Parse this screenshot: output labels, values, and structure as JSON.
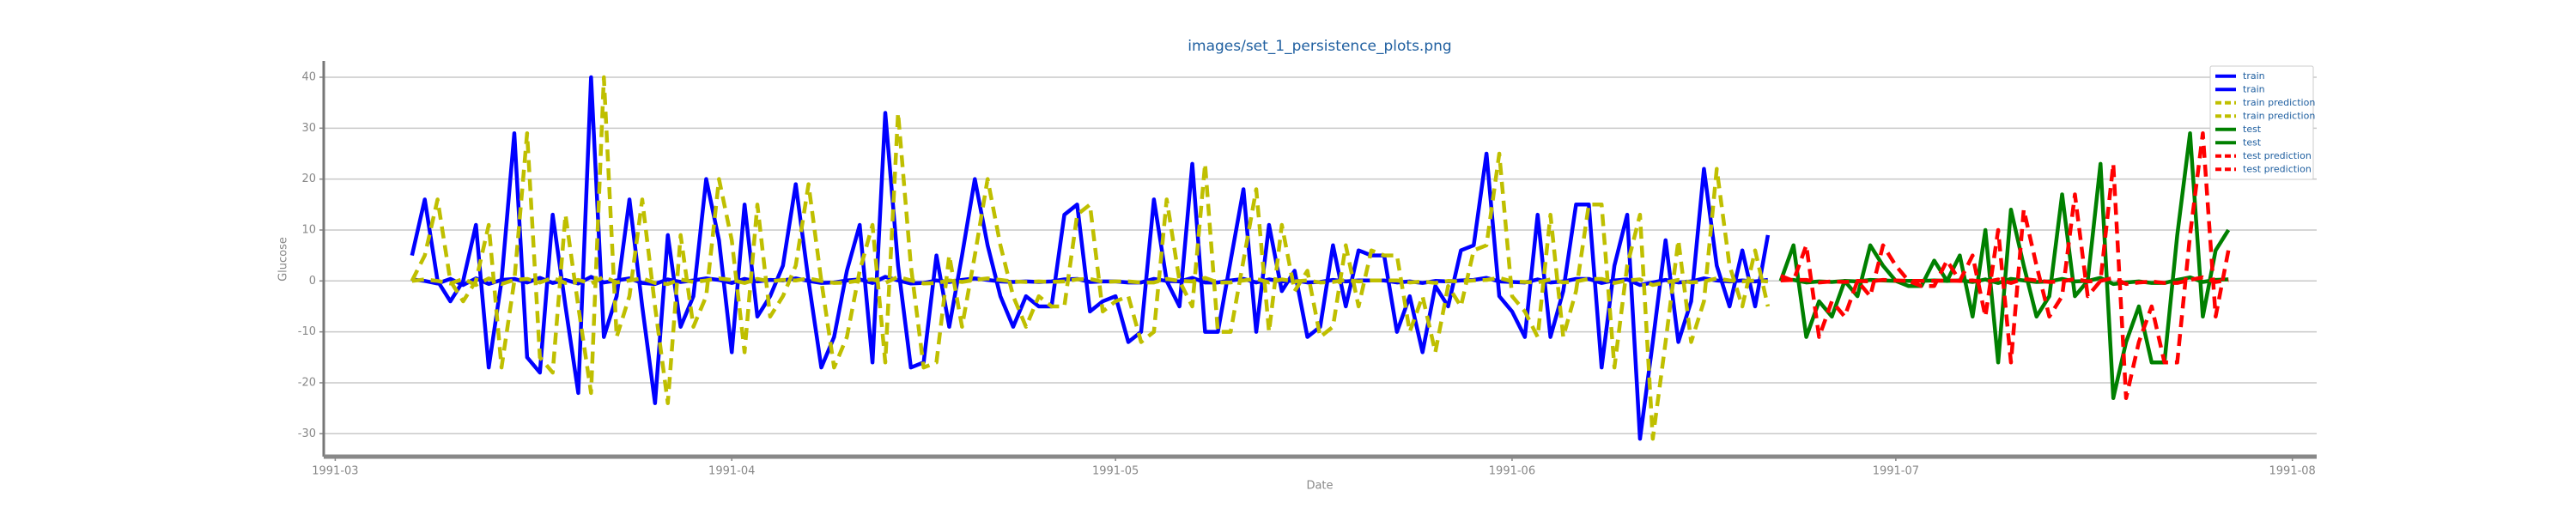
{
  "chart_data": {
    "type": "line",
    "title": "images/set_1_persistence_plots.png",
    "x_label": "Date",
    "y_label": "Glucose",
    "xlim": [
      -0.9,
      154.9
    ],
    "ylim": [
      -34.5,
      43.2
    ],
    "xticks": [
      {
        "value": 0,
        "label": "1991-03"
      },
      {
        "value": 31,
        "label": "1991-04"
      },
      {
        "value": 61,
        "label": "1991-05"
      },
      {
        "value": 92,
        "label": "1991-06"
      },
      {
        "value": 122,
        "label": "1991-07"
      },
      {
        "value": 153,
        "label": "1991-08"
      }
    ],
    "yticks": [
      -30,
      -20,
      -10,
      0,
      10,
      20,
      30,
      40
    ],
    "grid": true,
    "legend": "upper right",
    "series": [
      {
        "name": "train",
        "color": "#0000ff",
        "dashed": false,
        "x": [
          6,
          7,
          8,
          9,
          10,
          11,
          12,
          13,
          14,
          15,
          16,
          17,
          18,
          19,
          20,
          21,
          22,
          23,
          24,
          25,
          26,
          27,
          28,
          29,
          30,
          31,
          32,
          33,
          34,
          35,
          36,
          37,
          38,
          39,
          40,
          41,
          42,
          43,
          44,
          45,
          46,
          47,
          48,
          49,
          50,
          51,
          52,
          53,
          54,
          55,
          56,
          57,
          58,
          59,
          60,
          61,
          62,
          63,
          64,
          65,
          66,
          67,
          68,
          69,
          70,
          71,
          72,
          73,
          74,
          75,
          76,
          77,
          78,
          79,
          80,
          81,
          82,
          83,
          84,
          85,
          86,
          87,
          88,
          89,
          90,
          91,
          92,
          93,
          94,
          95,
          96,
          97,
          98,
          99,
          100,
          101,
          102,
          103,
          104,
          105,
          106,
          107,
          108,
          109,
          110,
          111,
          112
        ],
        "values": [
          5,
          16,
          0,
          -4,
          0,
          11,
          -17,
          0,
          29,
          -15,
          -18,
          13,
          -5,
          -22,
          40,
          -11,
          -3,
          16,
          -5,
          -24,
          9,
          -9,
          -3,
          20,
          8,
          -14,
          15,
          -7,
          -3,
          3,
          19,
          0,
          -17,
          -11,
          2,
          11,
          -16,
          33,
          3,
          -17,
          -16,
          5,
          -9,
          5,
          20,
          7,
          -3,
          -9,
          -3,
          -5,
          -5,
          13,
          15,
          -6,
          -4,
          -3,
          -12,
          -10,
          16,
          0,
          -5,
          23,
          -10,
          -10,
          4,
          18,
          -10,
          11,
          -2,
          2,
          -11,
          -9,
          7,
          -5,
          6,
          5,
          5,
          -10,
          -3,
          -14,
          -1,
          -5,
          6,
          7,
          25,
          -3,
          -6,
          -11,
          13,
          -11,
          -2,
          15,
          15,
          -17,
          3,
          13,
          -31,
          -12,
          8,
          -12,
          -4,
          22,
          3,
          -5,
          6,
          -5,
          9
        ]
      },
      {
        "name": "train",
        "color": "#0000ff",
        "dashed": false,
        "x": [
          6,
          7,
          8,
          9,
          10,
          11,
          12,
          13,
          14,
          15,
          16,
          17,
          18,
          19,
          20,
          21,
          22,
          23,
          24,
          25,
          26,
          27,
          28,
          29,
          30,
          31,
          32,
          33,
          34,
          35,
          36,
          37,
          38,
          39,
          40,
          41,
          42,
          43,
          44,
          45,
          46,
          47,
          48,
          49,
          50,
          51,
          52,
          53,
          54,
          55,
          56,
          57,
          58,
          59,
          60,
          61,
          62,
          63,
          64,
          65,
          66,
          67,
          68,
          69,
          70,
          71,
          72,
          73,
          74,
          75,
          76,
          77,
          78,
          79,
          80,
          81,
          82,
          83,
          84,
          85,
          86,
          87,
          88,
          89,
          90,
          91,
          92,
          93,
          94,
          95,
          96,
          97,
          98,
          99,
          100,
          101,
          102,
          103,
          104,
          105,
          106,
          107,
          108,
          109,
          110,
          111,
          112
        ],
        "values": [
          0.3,
          0,
          -0.5,
          0.4,
          -0.8,
          0.5,
          -0.6,
          0.2,
          0.4,
          -0.3,
          0.6,
          -0.4,
          0.2,
          -0.5,
          0.8,
          -0.3,
          0.1,
          0.5,
          -0.4,
          -0.6,
          0.3,
          -0.2,
          0.1,
          0.5,
          0.2,
          -0.4,
          0.4,
          -0.1,
          0.2,
          0.1,
          0.5,
          0,
          -0.4,
          -0.3,
          0.1,
          0.3,
          -0.4,
          0.8,
          0.1,
          -0.5,
          -0.4,
          0.1,
          -0.2,
          0.2,
          0.5,
          0.2,
          -0.1,
          -0.2,
          -0.1,
          -0.2,
          -0.1,
          0.3,
          0.4,
          -0.2,
          -0.1,
          -0.1,
          -0.3,
          -0.3,
          0.4,
          0,
          -0.1,
          0.6,
          -0.3,
          -0.3,
          0.1,
          0.4,
          -0.3,
          0.3,
          -0.1,
          0.1,
          -0.3,
          -0.2,
          0.2,
          -0.1,
          0.1,
          0.1,
          0.1,
          -0.3,
          -0.1,
          -0.4,
          0,
          -0.1,
          0.1,
          0.2,
          0.6,
          -0.1,
          -0.2,
          -0.3,
          0.3,
          -0.3,
          -0.1,
          0.4,
          0.4,
          -0.4,
          0.1,
          0.3,
          -0.8,
          -0.3,
          0.2,
          -0.3,
          -0.1,
          0.5,
          0.1,
          -0.1,
          0.1,
          -0.1,
          0.2
        ]
      },
      {
        "name": "train prediction",
        "color": "#bfbf00",
        "dashed": true,
        "x": [
          6,
          7,
          8,
          9,
          10,
          11,
          12,
          13,
          14,
          15,
          16,
          17,
          18,
          19,
          20,
          21,
          22,
          23,
          24,
          25,
          26,
          27,
          28,
          29,
          30,
          31,
          32,
          33,
          34,
          35,
          36,
          37,
          38,
          39,
          40,
          41,
          42,
          43,
          44,
          45,
          46,
          47,
          48,
          49,
          50,
          51,
          52,
          53,
          54,
          55,
          56,
          57,
          58,
          59,
          60,
          61,
          62,
          63,
          64,
          65,
          66,
          67,
          68,
          69,
          70,
          71,
          72,
          73,
          74,
          75,
          76,
          77,
          78,
          79,
          80,
          81,
          82,
          83,
          84,
          85,
          86,
          87,
          88,
          89,
          90,
          91,
          92,
          93,
          94,
          95,
          96,
          97,
          98,
          99,
          100,
          101,
          102,
          103,
          104,
          105,
          106,
          107,
          108,
          109,
          110,
          111,
          112
        ],
        "values": [
          0,
          5,
          16,
          0,
          -4,
          0,
          11,
          -17,
          0,
          29,
          -15,
          -18,
          13,
          -5,
          -22,
          40,
          -11,
          -3,
          16,
          -5,
          -24,
          9,
          -9,
          -3,
          20,
          8,
          -14,
          15,
          -7,
          -3,
          3,
          19,
          0,
          -17,
          -11,
          2,
          11,
          -16,
          33,
          3,
          -17,
          -16,
          5,
          -9,
          5,
          20,
          7,
          -3,
          -9,
          -3,
          -5,
          -5,
          13,
          15,
          -6,
          -4,
          -3,
          -12,
          -10,
          16,
          0,
          -5,
          23,
          -10,
          -10,
          4,
          18,
          -10,
          11,
          -2,
          2,
          -11,
          -9,
          7,
          -5,
          6,
          5,
          5,
          -10,
          -3,
          -14,
          -1,
          -5,
          6,
          7,
          25,
          -3,
          -6,
          -11,
          13,
          -11,
          -2,
          15,
          15,
          -17,
          3,
          13,
          -31,
          -12,
          8,
          -12,
          -4,
          22,
          3,
          -5,
          6,
          -5
        ]
      },
      {
        "name": "train prediction",
        "color": "#bfbf00",
        "dashed": true,
        "x": [
          6,
          7,
          8,
          9,
          10,
          11,
          12,
          13,
          14,
          15,
          16,
          17,
          18,
          19,
          20,
          21,
          22,
          23,
          24,
          25,
          26,
          27,
          28,
          29,
          30,
          31,
          32,
          33,
          34,
          35,
          36,
          37,
          38,
          39,
          40,
          41,
          42,
          43,
          44,
          45,
          46,
          47,
          48,
          49,
          50,
          51,
          52,
          53,
          54,
          55,
          56,
          57,
          58,
          59,
          60,
          61,
          62,
          63,
          64,
          65,
          66,
          67,
          68,
          69,
          70,
          71,
          72,
          73,
          74,
          75,
          76,
          77,
          78,
          79,
          80,
          81,
          82,
          83,
          84,
          85,
          86,
          87,
          88,
          89,
          90,
          91,
          92,
          93,
          94,
          95,
          96,
          97,
          98,
          99,
          100,
          101,
          102,
          103,
          104,
          105,
          106,
          107,
          108,
          109,
          110,
          111,
          112
        ],
        "values": [
          0,
          0.3,
          0,
          -0.5,
          0.4,
          -0.8,
          0.5,
          -0.6,
          0.2,
          0.4,
          -0.3,
          0.6,
          -0.4,
          0.2,
          -0.5,
          0.8,
          -0.3,
          0.1,
          0.5,
          -0.4,
          -0.6,
          0.3,
          -0.2,
          0.1,
          0.5,
          0.2,
          -0.4,
          0.4,
          -0.1,
          0.2,
          0.1,
          0.5,
          0,
          -0.4,
          -0.3,
          0.1,
          0.3,
          -0.4,
          0.8,
          0.1,
          -0.5,
          -0.4,
          0.1,
          -0.2,
          0.2,
          0.5,
          0.2,
          -0.1,
          -0.2,
          -0.1,
          -0.2,
          -0.1,
          0.3,
          0.4,
          -0.2,
          -0.1,
          -0.1,
          -0.3,
          -0.3,
          0.4,
          0,
          -0.1,
          0.6,
          -0.3,
          -0.3,
          0.1,
          0.4,
          -0.3,
          0.3,
          -0.1,
          0.1,
          -0.3,
          -0.2,
          0.2,
          -0.1,
          0.1,
          0.1,
          0.1,
          -0.3,
          -0.1,
          -0.4,
          0,
          -0.1,
          0.1,
          0.2,
          0.6,
          -0.1,
          -0.2,
          -0.3,
          0.3,
          -0.3,
          -0.1,
          0.4,
          0.4,
          -0.4,
          0.1,
          0.3,
          -0.8,
          -0.3,
          0.2,
          -0.3,
          -0.1,
          0.5,
          0.1,
          -0.1,
          0.1,
          -0.1
        ]
      },
      {
        "name": "test",
        "color": "#008000",
        "dashed": false,
        "x": [
          113,
          114,
          115,
          116,
          117,
          118,
          119,
          120,
          121,
          122,
          123,
          124,
          125,
          126,
          127,
          128,
          129,
          130,
          131,
          132,
          133,
          134,
          135,
          136,
          137,
          138,
          139,
          140,
          141,
          142,
          143,
          144,
          145,
          146,
          147,
          148
        ],
        "values": [
          0,
          7,
          -11,
          -4,
          -7,
          0,
          -3,
          7,
          3,
          0,
          -1,
          -1,
          4,
          0,
          5,
          -7,
          10,
          -16,
          14,
          3,
          -7,
          -3,
          17,
          -3,
          0,
          23,
          -23,
          -12,
          -5,
          -16,
          -16,
          9,
          29,
          -7,
          6,
          10
        ]
      },
      {
        "name": "test",
        "color": "#008000",
        "dashed": false,
        "x": [
          113,
          114,
          115,
          116,
          117,
          118,
          119,
          120,
          121,
          122,
          123,
          124,
          125,
          126,
          127,
          128,
          129,
          130,
          131,
          132,
          133,
          134,
          135,
          136,
          137,
          138,
          139,
          140,
          141,
          142,
          143,
          144,
          145,
          146,
          147,
          148
        ],
        "values": [
          0.2,
          0.2,
          -0.3,
          -0.1,
          -0.2,
          0,
          -0.1,
          0.2,
          0.1,
          0,
          0,
          0,
          0.1,
          0,
          0.1,
          -0.2,
          0.3,
          -0.4,
          0.4,
          0.1,
          -0.2,
          -0.1,
          0.4,
          -0.1,
          0,
          0.6,
          -0.6,
          -0.3,
          -0.1,
          -0.4,
          -0.4,
          0.2,
          0.7,
          -0.2,
          0.2,
          0.3
        ]
      },
      {
        "name": "test prediction",
        "color": "#ff0000",
        "dashed": true,
        "x": [
          113,
          114,
          115,
          116,
          117,
          118,
          119,
          120,
          121,
          122,
          123,
          124,
          125,
          126,
          127,
          128,
          129,
          130,
          131,
          132,
          133,
          134,
          135,
          136,
          137,
          138,
          139,
          140,
          141,
          142,
          143,
          144,
          145,
          146,
          147,
          148
        ],
        "values": [
          1,
          0,
          7,
          -11,
          -4,
          -7,
          0,
          -3,
          7,
          3,
          0,
          -1,
          -1,
          4,
          0,
          5,
          -7,
          10,
          -16,
          14,
          3,
          -7,
          -3,
          17,
          -3,
          0,
          23,
          -23,
          -12,
          -5,
          -16,
          -16,
          9,
          29,
          -7,
          6
        ]
      },
      {
        "name": "test prediction",
        "color": "#ff0000",
        "dashed": true,
        "x": [
          113,
          114,
          115,
          116,
          117,
          118,
          119,
          120,
          121,
          122,
          123,
          124,
          125,
          126,
          127,
          128,
          129,
          130,
          131,
          132,
          133,
          134,
          135,
          136,
          137,
          138,
          139,
          140,
          141,
          142,
          143,
          144,
          145,
          146,
          147,
          148
        ],
        "values": [
          0.1,
          0.2,
          0.2,
          -0.3,
          -0.1,
          -0.2,
          0,
          -0.1,
          0.2,
          0.1,
          0,
          0,
          0,
          0.1,
          0,
          0.1,
          -0.2,
          0.3,
          -0.4,
          0.4,
          0.1,
          -0.2,
          -0.1,
          0.4,
          -0.1,
          0,
          0.6,
          -0.6,
          -0.3,
          -0.1,
          -0.4,
          -0.4,
          0.2,
          0.7,
          -0.2,
          0.2
        ]
      }
    ]
  }
}
